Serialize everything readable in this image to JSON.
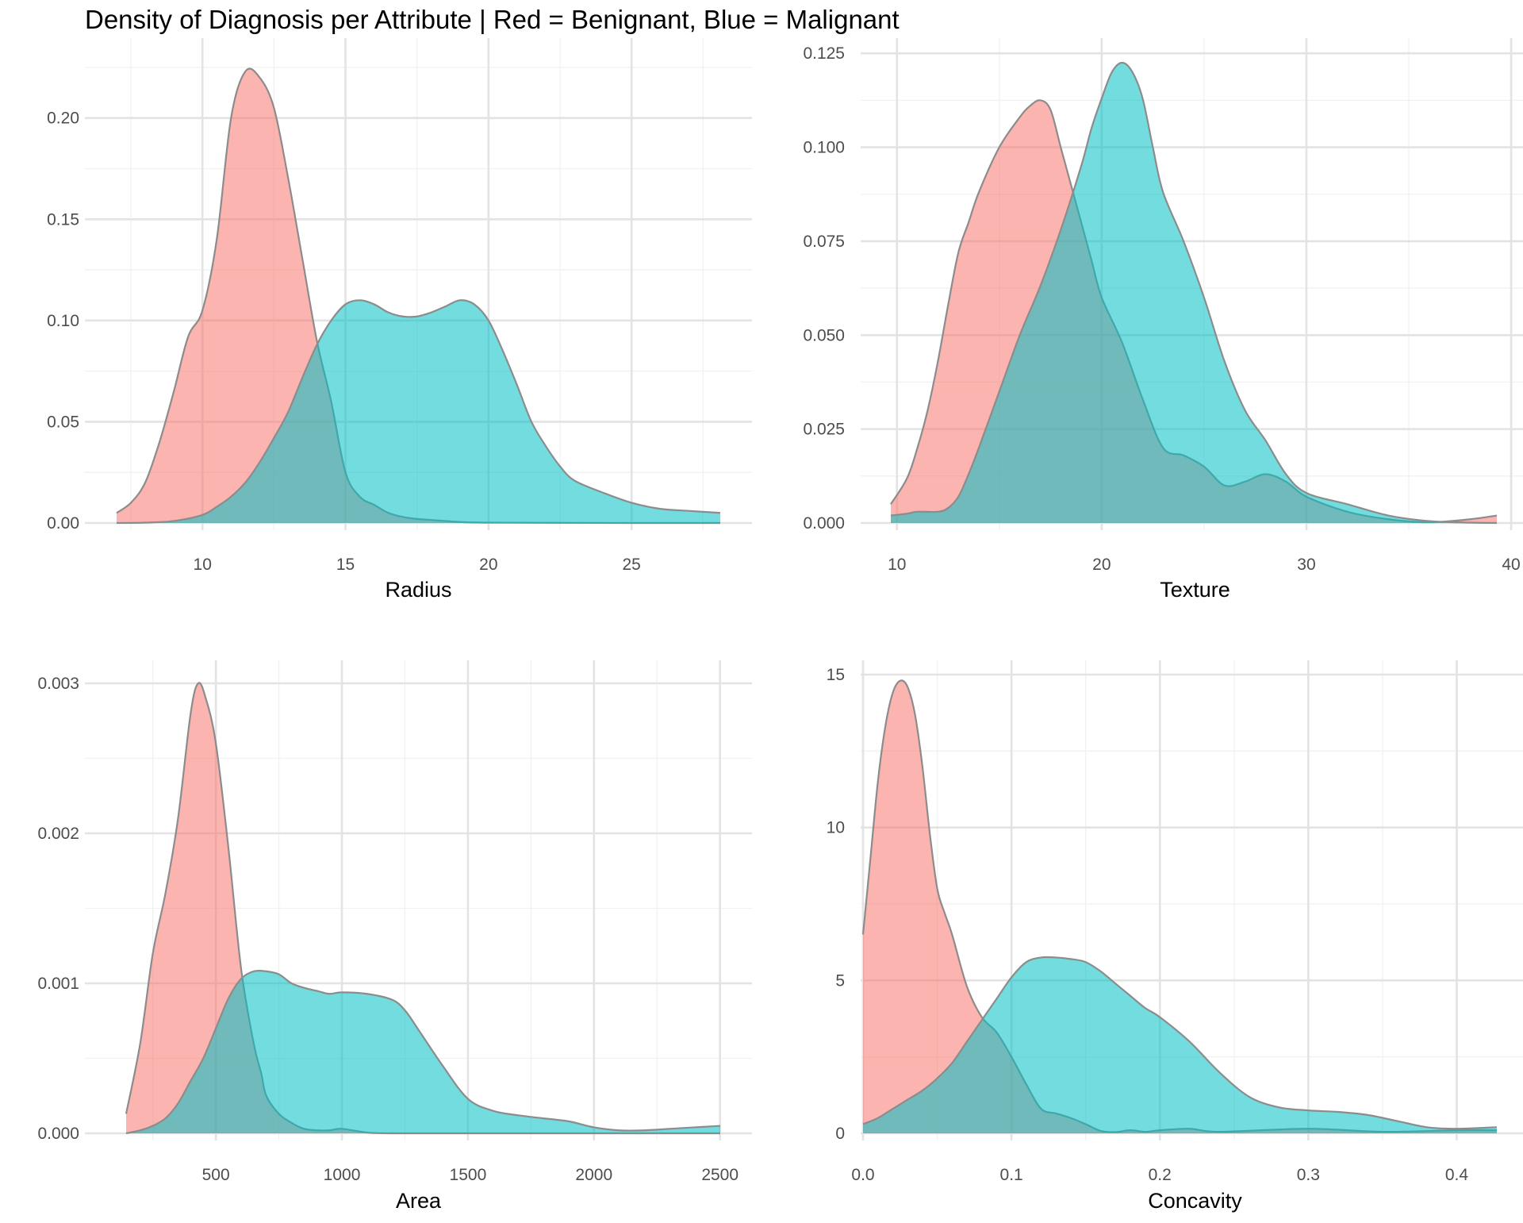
{
  "figure": {
    "title": "Density of Diagnosis per Attribute | Red = Benignant, Blue = Malignant"
  },
  "colors": {
    "benign": "#F8766D",
    "malignant": "#00BFC4",
    "outline": "#8c8c8c",
    "grid_major": "#e3e3e3",
    "grid_minor": "#f1f1f1",
    "tick_text": "#4d4d4d",
    "label_text": "#000000"
  },
  "chart_data": [
    {
      "type": "area",
      "xlabel": "Radius",
      "ylabel": "",
      "xlim": [
        7.0,
        28.1
      ],
      "ylim": [
        0,
        0.223
      ],
      "xticks": [
        10,
        15,
        20,
        25
      ],
      "xtick_labels": [
        "10",
        "15",
        "20",
        "25"
      ],
      "yticks": [
        0,
        0.05,
        0.1,
        0.15,
        0.2
      ],
      "ytick_labels": [
        "0.00",
        "0.05",
        "0.10",
        "0.15",
        "0.20"
      ],
      "grid": true,
      "series": [
        {
          "key": "benign",
          "x": [
            7.0,
            7.5,
            8.0,
            8.5,
            9.0,
            9.5,
            10.0,
            10.5,
            11.0,
            11.5,
            12.0,
            12.5,
            13.0,
            13.5,
            14.0,
            14.5,
            15.0,
            15.5,
            16.0,
            16.5,
            17.0,
            17.5,
            18.0,
            19.0,
            20.0,
            22.0,
            25.0,
            28.1
          ],
          "y": [
            0.005,
            0.01,
            0.02,
            0.04,
            0.065,
            0.092,
            0.105,
            0.14,
            0.2,
            0.223,
            0.22,
            0.205,
            0.17,
            0.13,
            0.09,
            0.06,
            0.025,
            0.013,
            0.009,
            0.005,
            0.003,
            0.002,
            0.0015,
            0.0005,
            0.0002,
            0.0001,
            0.0,
            0.0
          ]
        },
        {
          "key": "malignant",
          "x": [
            7.0,
            8.0,
            9.0,
            10.0,
            10.5,
            11.0,
            11.5,
            12.0,
            12.5,
            13.0,
            13.5,
            14.0,
            14.5,
            15.0,
            15.5,
            16.0,
            16.5,
            17.0,
            17.5,
            18.0,
            18.5,
            19.0,
            19.5,
            20.0,
            20.5,
            21.0,
            21.5,
            22.0,
            22.5,
            23.0,
            24.0,
            25.0,
            26.0,
            27.0,
            28.1
          ],
          "y": [
            0.0,
            0.0002,
            0.001,
            0.004,
            0.008,
            0.013,
            0.02,
            0.03,
            0.042,
            0.055,
            0.072,
            0.088,
            0.1,
            0.108,
            0.11,
            0.108,
            0.104,
            0.102,
            0.102,
            0.104,
            0.107,
            0.11,
            0.108,
            0.1,
            0.085,
            0.068,
            0.05,
            0.038,
            0.028,
            0.021,
            0.015,
            0.01,
            0.007,
            0.006,
            0.005
          ]
        }
      ]
    },
    {
      "type": "area",
      "xlabel": "Texture",
      "ylabel": "",
      "xlim": [
        9.7,
        39.3
      ],
      "ylim": [
        0,
        0.1225
      ],
      "xticks": [
        10,
        20,
        30,
        40
      ],
      "xtick_labels": [
        "10",
        "20",
        "30",
        "40"
      ],
      "yticks": [
        0,
        0.025,
        0.05,
        0.075,
        0.1,
        0.125
      ],
      "ytick_labels": [
        "0.000",
        "0.025",
        "0.050",
        "0.075",
        "0.100",
        "0.125"
      ],
      "grid": true,
      "series": [
        {
          "key": "benign",
          "x": [
            9.7,
            10.5,
            11.0,
            11.5,
            12.0,
            12.5,
            13.0,
            13.5,
            14.0,
            15.0,
            16.0,
            16.5,
            17.0,
            17.5,
            18.0,
            18.5,
            19.0,
            19.5,
            20.0,
            21.0,
            22.0,
            23.0,
            24.0,
            25.0,
            26.0,
            27.0,
            28.0,
            29.0,
            30.0,
            32.0,
            34.0,
            36.0,
            38.0,
            39.3
          ],
          "y": [
            0.005,
            0.012,
            0.02,
            0.03,
            0.043,
            0.058,
            0.072,
            0.08,
            0.088,
            0.1,
            0.108,
            0.111,
            0.1125,
            0.11,
            0.1,
            0.09,
            0.08,
            0.07,
            0.06,
            0.048,
            0.033,
            0.02,
            0.018,
            0.015,
            0.01,
            0.011,
            0.013,
            0.011,
            0.007,
            0.003,
            0.001,
            0.0002,
            0.001,
            0.002
          ]
        },
        {
          "key": "malignant",
          "x": [
            9.7,
            10.5,
            11.0,
            12.0,
            12.5,
            13.0,
            13.5,
            14.0,
            15.0,
            16.0,
            17.0,
            18.0,
            19.0,
            19.5,
            20.0,
            20.5,
            21.0,
            21.5,
            22.0,
            22.5,
            23.0,
            24.0,
            25.0,
            26.0,
            27.0,
            28.0,
            29.0,
            30.0,
            32.0,
            34.0,
            36.0,
            38.0,
            39.3
          ],
          "y": [
            0.002,
            0.0025,
            0.003,
            0.003,
            0.004,
            0.007,
            0.013,
            0.02,
            0.035,
            0.05,
            0.063,
            0.078,
            0.095,
            0.105,
            0.113,
            0.12,
            0.1225,
            0.12,
            0.113,
            0.1,
            0.088,
            0.075,
            0.06,
            0.043,
            0.03,
            0.022,
            0.013,
            0.008,
            0.005,
            0.002,
            0.0005,
            0.0001,
            0.0
          ]
        }
      ]
    },
    {
      "type": "area",
      "xlabel": "Area",
      "ylabel": "",
      "xlim": [
        144,
        2501
      ],
      "ylim": [
        0,
        0.003
      ],
      "xticks": [
        500,
        1000,
        1500,
        2000,
        2500
      ],
      "xtick_labels": [
        "500",
        "1000",
        "1500",
        "2000",
        "2500"
      ],
      "yticks": [
        0,
        0.001,
        0.002,
        0.003
      ],
      "ytick_labels": [
        "0.000",
        "0.001",
        "0.002",
        "0.003"
      ],
      "grid": true,
      "series": [
        {
          "key": "benign",
          "x": [
            144,
            200,
            250,
            300,
            350,
            400,
            430,
            460,
            500,
            550,
            600,
            650,
            680,
            700,
            750,
            800,
            850,
            900,
            950,
            1000,
            1100,
            1200,
            1500,
            2000,
            2501
          ],
          "y": [
            0.00013,
            0.0006,
            0.0012,
            0.0016,
            0.0021,
            0.0028,
            0.003,
            0.0029,
            0.0026,
            0.0019,
            0.0011,
            0.0006,
            0.0004,
            0.00025,
            0.00013,
            7e-05,
            3e-05,
            2e-05,
            2e-05,
            3e-05,
            5e-06,
            0.0,
            0.0,
            0.0,
            0.0
          ]
        },
        {
          "key": "malignant",
          "x": [
            144,
            200,
            250,
            300,
            350,
            400,
            450,
            500,
            550,
            600,
            650,
            700,
            750,
            800,
            850,
            900,
            950,
            1000,
            1100,
            1200,
            1250,
            1300,
            1400,
            1500,
            1600,
            1700,
            1800,
            1900,
            2000,
            2100,
            2200,
            2300,
            2400,
            2501
          ],
          "y": [
            0.0,
            2e-05,
            5e-05,
            0.0001,
            0.0002,
            0.00035,
            0.0005,
            0.0007,
            0.0009,
            0.00103,
            0.00108,
            0.00108,
            0.00106,
            0.001,
            0.00097,
            0.00095,
            0.00093,
            0.00094,
            0.00093,
            0.00089,
            0.00082,
            0.0007,
            0.00045,
            0.00023,
            0.00015,
            0.00012,
            0.0001,
            8e-05,
            4e-05,
            2e-05,
            2e-05,
            3e-05,
            4e-05,
            5e-05
          ]
        }
      ]
    },
    {
      "type": "area",
      "xlabel": "Concavity",
      "ylabel": "",
      "xlim": [
        0,
        0.427
      ],
      "ylim": [
        0,
        15
      ],
      "xticks": [
        0,
        0.1,
        0.2,
        0.3,
        0.4
      ],
      "xtick_labels": [
        "0.0",
        "0.1",
        "0.2",
        "0.3",
        "0.4"
      ],
      "yticks": [
        0,
        5,
        10,
        15
      ],
      "ytick_labels": [
        "0",
        "5",
        "10",
        "15"
      ],
      "grid": true,
      "series": [
        {
          "key": "benign",
          "x": [
            0.0,
            0.005,
            0.01,
            0.015,
            0.02,
            0.025,
            0.03,
            0.035,
            0.04,
            0.045,
            0.05,
            0.055,
            0.06,
            0.07,
            0.08,
            0.09,
            0.1,
            0.11,
            0.12,
            0.13,
            0.14,
            0.15,
            0.16,
            0.17,
            0.18,
            0.19,
            0.2,
            0.22,
            0.24,
            0.3,
            0.35,
            0.4,
            0.427
          ],
          "y": [
            6.5,
            9.0,
            11.5,
            13.3,
            14.4,
            14.8,
            14.6,
            13.7,
            12.0,
            9.8,
            8.0,
            7.2,
            6.5,
            4.8,
            3.8,
            3.3,
            2.5,
            1.6,
            0.8,
            0.65,
            0.5,
            0.3,
            0.08,
            0.04,
            0.1,
            0.05,
            0.1,
            0.15,
            0.05,
            0.15,
            0.05,
            0.1,
            0.1
          ]
        },
        {
          "key": "malignant",
          "x": [
            0.0,
            0.01,
            0.02,
            0.03,
            0.04,
            0.05,
            0.06,
            0.07,
            0.08,
            0.09,
            0.1,
            0.11,
            0.12,
            0.13,
            0.14,
            0.15,
            0.16,
            0.17,
            0.18,
            0.19,
            0.2,
            0.22,
            0.24,
            0.26,
            0.28,
            0.3,
            0.32,
            0.34,
            0.36,
            0.38,
            0.4,
            0.427
          ],
          "y": [
            0.3,
            0.5,
            0.8,
            1.1,
            1.4,
            1.8,
            2.3,
            3.0,
            3.7,
            4.4,
            5.1,
            5.6,
            5.75,
            5.75,
            5.7,
            5.6,
            5.3,
            4.9,
            4.5,
            4.1,
            3.8,
            3.0,
            2.0,
            1.2,
            0.85,
            0.75,
            0.7,
            0.6,
            0.4,
            0.2,
            0.15,
            0.2
          ]
        }
      ]
    }
  ]
}
